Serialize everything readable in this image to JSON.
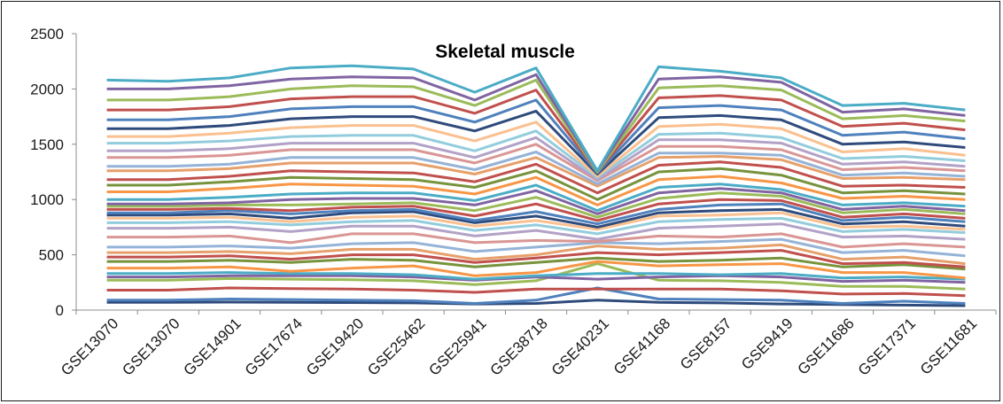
{
  "chart_data": {
    "type": "line",
    "title": "Skeletal muscle",
    "xlabel": "",
    "ylabel": "",
    "ylim": [
      0,
      2500
    ],
    "yticks": [
      0,
      500,
      1000,
      1500,
      2000,
      2500
    ],
    "categories": [
      "GSE13070",
      "GSE13070",
      "GSE14901",
      "GSE17674",
      "GSE19420",
      "GSE25462",
      "GSE25941",
      "GSE38718",
      "GSE40231",
      "GSE41168",
      "GSE8157",
      "GSE9419",
      "GSE11686",
      "GSE17371",
      "GSE11681"
    ],
    "grid": false,
    "legend": "none",
    "colors": [
      "#2f4b7c",
      "#4f81bd",
      "#c0504d",
      "#9bbb59",
      "#8064a2",
      "#4bacc6",
      "#f79646",
      "#77933c",
      "#c0504d",
      "#e6a06b",
      "#95b3d7",
      "#d99694",
      "#b3a2c7",
      "#93cddd",
      "#fac090"
    ],
    "series": [
      {
        "values": [
          70,
          70,
          72,
          70,
          68,
          65,
          55,
          60,
          90,
          70,
          65,
          55,
          50,
          45,
          40
        ]
      },
      {
        "values": [
          90,
          90,
          100,
          95,
          90,
          85,
          60,
          90,
          200,
          100,
          95,
          90,
          60,
          80,
          60
        ]
      },
      {
        "values": [
          180,
          180,
          200,
          195,
          190,
          180,
          160,
          190,
          190,
          190,
          190,
          175,
          145,
          150,
          130
        ]
      },
      {
        "values": [
          270,
          270,
          285,
          280,
          275,
          265,
          230,
          265,
          420,
          270,
          265,
          250,
          215,
          215,
          190
        ]
      },
      {
        "values": [
          300,
          300,
          310,
          310,
          310,
          300,
          270,
          300,
          280,
          300,
          310,
          300,
          260,
          270,
          250
        ]
      },
      {
        "values": [
          330,
          330,
          340,
          330,
          330,
          320,
          280,
          310,
          330,
          330,
          320,
          330,
          290,
          300,
          280
        ]
      },
      {
        "values": [
          380,
          380,
          390,
          350,
          380,
          400,
          310,
          340,
          440,
          400,
          410,
          420,
          340,
          340,
          290
        ]
      },
      {
        "values": [
          440,
          440,
          450,
          430,
          460,
          450,
          390,
          430,
          470,
          440,
          450,
          470,
          390,
          410,
          370
        ]
      },
      {
        "values": [
          480,
          480,
          490,
          460,
          500,
          500,
          430,
          470,
          520,
          500,
          520,
          540,
          420,
          430,
          390
        ]
      },
      {
        "values": [
          520,
          520,
          530,
          510,
          550,
          550,
          460,
          500,
          580,
          550,
          560,
          590,
          460,
          480,
          420
        ]
      },
      {
        "values": [
          570,
          570,
          580,
          560,
          600,
          610,
          530,
          570,
          610,
          600,
          620,
          640,
          520,
          540,
          490
        ]
      },
      {
        "values": [
          660,
          660,
          670,
          610,
          690,
          690,
          610,
          630,
          620,
          670,
          660,
          690,
          570,
          600,
          570
        ]
      },
      {
        "values": [
          740,
          740,
          750,
          710,
          760,
          760,
          670,
          720,
          640,
          740,
          760,
          780,
          660,
          670,
          640
        ]
      },
      {
        "values": [
          790,
          790,
          800,
          770,
          800,
          810,
          720,
          770,
          690,
          800,
          820,
          830,
          710,
          730,
          700
        ]
      },
      {
        "values": [
          830,
          830,
          840,
          800,
          840,
          850,
          760,
          810,
          730,
          850,
          860,
          880,
          750,
          760,
          730
        ]
      },
      {
        "values": [
          860,
          860,
          870,
          830,
          880,
          890,
          790,
          850,
          750,
          880,
          900,
          910,
          780,
          800,
          760
        ]
      },
      {
        "values": [
          880,
          880,
          900,
          870,
          900,
          910,
          810,
          890,
          780,
          910,
          950,
          960,
          810,
          840,
          800
        ]
      },
      {
        "values": [
          910,
          910,
          920,
          900,
          930,
          940,
          850,
          960,
          810,
          960,
          1000,
          990,
          840,
          870,
          830
        ]
      },
      {
        "values": [
          940,
          940,
          950,
          950,
          960,
          970,
          900,
          1020,
          840,
          1010,
          1060,
          1030,
          880,
          910,
          870
        ]
      },
      {
        "values": [
          960,
          960,
          970,
          1000,
          1010,
          1010,
          950,
          1080,
          870,
          1060,
          1100,
          1060,
          910,
          940,
          900
        ]
      },
      {
        "values": [
          1000,
          1000,
          1020,
          1050,
          1060,
          1060,
          990,
          1130,
          900,
          1110,
          1140,
          1090,
          950,
          970,
          940
        ]
      },
      {
        "values": [
          1070,
          1070,
          1100,
          1140,
          1130,
          1120,
          1050,
          1200,
          950,
          1180,
          1210,
          1150,
          1010,
          1030,
          1000
        ]
      },
      {
        "values": [
          1130,
          1130,
          1160,
          1200,
          1190,
          1180,
          1110,
          1260,
          1000,
          1250,
          1280,
          1220,
          1060,
          1080,
          1050
        ]
      },
      {
        "values": [
          1180,
          1180,
          1210,
          1260,
          1250,
          1240,
          1160,
          1320,
          1060,
          1310,
          1340,
          1290,
          1120,
          1130,
          1110
        ]
      },
      {
        "values": [
          1260,
          1260,
          1280,
          1330,
          1330,
          1330,
          1230,
          1380,
          1120,
          1380,
          1390,
          1360,
          1190,
          1200,
          1180
        ]
      },
      {
        "values": [
          1300,
          1300,
          1320,
          1380,
          1380,
          1380,
          1270,
          1430,
          1140,
          1420,
          1420,
          1400,
          1220,
          1240,
          1210
        ]
      },
      {
        "values": [
          1380,
          1380,
          1400,
          1450,
          1450,
          1450,
          1330,
          1500,
          1170,
          1480,
          1480,
          1450,
          1270,
          1290,
          1260
        ]
      },
      {
        "values": [
          1440,
          1440,
          1460,
          1510,
          1510,
          1510,
          1380,
          1560,
          1180,
          1540,
          1540,
          1510,
          1320,
          1340,
          1300
        ]
      },
      {
        "values": [
          1510,
          1510,
          1530,
          1570,
          1580,
          1580,
          1440,
          1620,
          1200,
          1590,
          1600,
          1560,
          1370,
          1390,
          1350
        ]
      },
      {
        "values": [
          1570,
          1570,
          1600,
          1650,
          1670,
          1670,
          1530,
          1700,
          1210,
          1660,
          1680,
          1640,
          1430,
          1460,
          1400
        ]
      },
      {
        "values": [
          1640,
          1640,
          1670,
          1730,
          1750,
          1750,
          1620,
          1800,
          1230,
          1740,
          1760,
          1720,
          1500,
          1520,
          1470
        ]
      },
      {
        "values": [
          1720,
          1720,
          1750,
          1820,
          1840,
          1840,
          1700,
          1900,
          1240,
          1830,
          1850,
          1810,
          1580,
          1610,
          1550
        ]
      },
      {
        "values": [
          1810,
          1810,
          1840,
          1910,
          1930,
          1930,
          1780,
          1990,
          1250,
          1920,
          1940,
          1900,
          1660,
          1690,
          1630
        ]
      },
      {
        "values": [
          1900,
          1900,
          1930,
          2000,
          2030,
          2020,
          1850,
          2080,
          1250,
          2010,
          2030,
          1990,
          1730,
          1760,
          1710
        ]
      },
      {
        "values": [
          2000,
          2000,
          2030,
          2090,
          2110,
          2100,
          1900,
          2130,
          1260,
          2090,
          2110,
          2060,
          1790,
          1820,
          1760
        ]
      },
      {
        "values": [
          2080,
          2070,
          2100,
          2190,
          2210,
          2180,
          1970,
          2190,
          1260,
          2200,
          2160,
          2100,
          1850,
          1870,
          1810
        ]
      }
    ]
  }
}
